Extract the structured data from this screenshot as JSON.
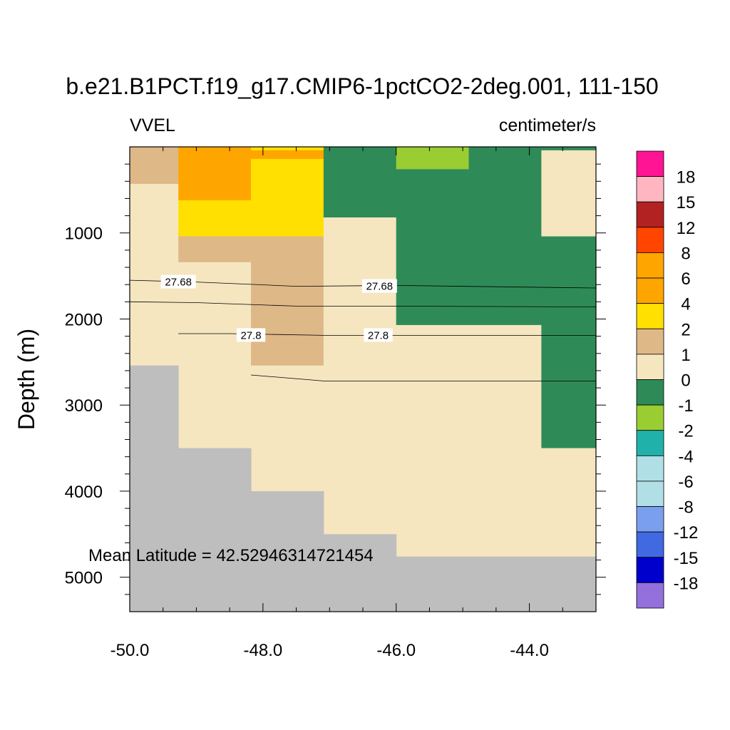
{
  "chart_data": {
    "type": "heatmap",
    "title": "b.e21.B1PCT.f19_g17.CMIP6-1pctCO2-2deg.001, 111-150",
    "left_label": "VVEL",
    "right_label": "centimeter/s",
    "ylabel": "Depth (m)",
    "xlabel": "",
    "xlim": [
      -50.0,
      -43.0
    ],
    "ylim": [
      5400,
      0
    ],
    "y_inverted": true,
    "x_ticks": [
      "-50.0",
      "-48.0",
      "-46.0",
      "-44.0"
    ],
    "x_tick_values": [
      -50,
      -48,
      -46,
      -44
    ],
    "y_ticks": [
      "1000",
      "2000",
      "3000",
      "4000",
      "5000"
    ],
    "y_tick_values": [
      1000,
      2000,
      3000,
      4000,
      5000
    ],
    "annotation": "Mean Latitude = 42.52946314721454",
    "colorbar": {
      "labels": [
        "18",
        "15",
        "12",
        "8",
        "6",
        "4",
        "2",
        "1",
        "0",
        "-1",
        "-2",
        "-4",
        "-6",
        "-8",
        "-12",
        "-15",
        "-18"
      ],
      "colors": [
        "#ff1493",
        "#ffb6c1",
        "#b22222",
        "#ff4500",
        "#ffa500",
        "#ffa500",
        "#ffe000",
        "#deb887",
        "#f5e6c0",
        "#2e8b57",
        "#9acd32",
        "#20b2aa",
        "#b0e0e6",
        "#b0e0e6",
        "#7b9fef",
        "#4169e1",
        "#0000cd",
        "#9370db"
      ]
    },
    "missing_color": "#bebebe",
    "cells": [
      {
        "x": [
          -50.0,
          -49.27
        ],
        "y": [
          0,
          430
        ],
        "color": "#deb887"
      },
      {
        "x": [
          -50.0,
          -49.27
        ],
        "y": [
          430,
          2540
        ],
        "color": "#f5e6c0"
      },
      {
        "x": [
          -49.27,
          -48.18
        ],
        "y": [
          0,
          620
        ],
        "color": "#ffa500"
      },
      {
        "x": [
          -49.27,
          -48.18
        ],
        "y": [
          620,
          1040
        ],
        "color": "#ffe000"
      },
      {
        "x": [
          -49.27,
          -48.18
        ],
        "y": [
          1040,
          1340
        ],
        "color": "#deb887"
      },
      {
        "x": [
          -49.27,
          -48.18
        ],
        "y": [
          1340,
          3500
        ],
        "color": "#f5e6c0"
      },
      {
        "x": [
          -48.18,
          -47.09
        ],
        "y": [
          0,
          40
        ],
        "color": "#ffe000"
      },
      {
        "x": [
          -48.18,
          -47.09
        ],
        "y": [
          40,
          140
        ],
        "color": "#ffa500"
      },
      {
        "x": [
          -48.18,
          -47.09
        ],
        "y": [
          140,
          1040
        ],
        "color": "#ffe000"
      },
      {
        "x": [
          -48.18,
          -47.09
        ],
        "y": [
          1040,
          2540
        ],
        "color": "#deb887"
      },
      {
        "x": [
          -48.18,
          -47.09
        ],
        "y": [
          2540,
          4000
        ],
        "color": "#f5e6c0"
      },
      {
        "x": [
          -47.09,
          -46.0
        ],
        "y": [
          0,
          820
        ],
        "color": "#2e8b57"
      },
      {
        "x": [
          -47.09,
          -46.0
        ],
        "y": [
          820,
          4500
        ],
        "color": "#f5e6c0"
      },
      {
        "x": [
          -46.0,
          -44.91
        ],
        "y": [
          0,
          260
        ],
        "color": "#9acd32"
      },
      {
        "x": [
          -46.0,
          -44.91
        ],
        "y": [
          260,
          2070
        ],
        "color": "#2e8b57"
      },
      {
        "x": [
          -46.0,
          -44.91
        ],
        "y": [
          2070,
          4760
        ],
        "color": "#f5e6c0"
      },
      {
        "x": [
          -44.91,
          -43.82
        ],
        "y": [
          0,
          2070
        ],
        "color": "#2e8b57"
      },
      {
        "x": [
          -44.91,
          -43.82
        ],
        "y": [
          2070,
          4760
        ],
        "color": "#f5e6c0"
      },
      {
        "x": [
          -43.82,
          -43.0
        ],
        "y": [
          0,
          40
        ],
        "color": "#2e8b57"
      },
      {
        "x": [
          -43.82,
          -43.0
        ],
        "y": [
          40,
          1040
        ],
        "color": "#f5e6c0"
      },
      {
        "x": [
          -43.82,
          -43.0
        ],
        "y": [
          1040,
          3500
        ],
        "color": "#2e8b57"
      },
      {
        "x": [
          -43.82,
          -43.0
        ],
        "y": [
          3500,
          4760
        ],
        "color": "#f5e6c0"
      }
    ],
    "land": [
      {
        "x": [
          -50.0,
          -49.27
        ],
        "y": [
          2540,
          5400
        ]
      },
      {
        "x": [
          -49.27,
          -48.18
        ],
        "y": [
          3500,
          5400
        ]
      },
      {
        "x": [
          -48.18,
          -47.09
        ],
        "y": [
          4000,
          5400
        ]
      },
      {
        "x": [
          -47.09,
          -46.0
        ],
        "y": [
          4500,
          5400
        ]
      },
      {
        "x": [
          -46.0,
          -43.0
        ],
        "y": [
          4760,
          5400
        ]
      }
    ],
    "contours": [
      {
        "level": "27.68",
        "points": [
          [
            -50.0,
            1550
          ],
          [
            -49.0,
            1570
          ],
          [
            -47.5,
            1620
          ],
          [
            -46.0,
            1610
          ],
          [
            -43.0,
            1640
          ]
        ],
        "label_positions": [
          [
            -49.27,
            1570
          ],
          [
            -46.25,
            1620
          ]
        ]
      },
      {
        "level": "",
        "points": [
          [
            -50.0,
            1800
          ],
          [
            -49.0,
            1810
          ],
          [
            -47.5,
            1850
          ],
          [
            -46.0,
            1850
          ],
          [
            -43.0,
            1860
          ]
        ],
        "label_positions": []
      },
      {
        "level": "27.8",
        "points": [
          [
            -49.27,
            2170
          ],
          [
            -48.5,
            2170
          ],
          [
            -47.09,
            2190
          ],
          [
            -46.0,
            2190
          ],
          [
            -43.0,
            2190
          ]
        ],
        "label_positions": [
          [
            -48.18,
            2190
          ],
          [
            -46.27,
            2190
          ]
        ]
      },
      {
        "level": "",
        "points": [
          [
            -48.18,
            2650
          ],
          [
            -47.09,
            2720
          ],
          [
            -46.0,
            2720
          ],
          [
            -43.0,
            2720
          ]
        ],
        "label_positions": []
      }
    ]
  }
}
